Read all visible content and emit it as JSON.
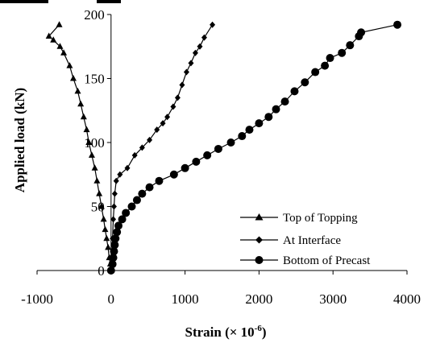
{
  "chart_data": {
    "type": "line",
    "xlabel": "Strain (× 10",
    "xlabel_sup": "-6",
    "xlabel_end": ")",
    "ylabel": "Applied load (kN)",
    "xlim": [
      -1000,
      4000
    ],
    "ylim": [
      0,
      200
    ],
    "x_ticks": [
      -1000,
      0,
      1000,
      2000,
      3000,
      4000
    ],
    "y_ticks": [
      0,
      50,
      100,
      150,
      200
    ],
    "x_tick_labels": [
      "-1000",
      "0",
      "1000",
      "2000",
      "3000",
      "4000"
    ],
    "y_tick_labels": [
      "0",
      "50",
      "100",
      "150",
      "200"
    ],
    "grid": false,
    "legend_position": "bottom-right",
    "series": [
      {
        "name": "Top of Topping",
        "marker": "triangle",
        "points": [
          [
            0,
            0
          ],
          [
            -10,
            5
          ],
          [
            -25,
            10
          ],
          [
            -40,
            18
          ],
          [
            -60,
            25
          ],
          [
            -80,
            32
          ],
          [
            -100,
            40
          ],
          [
            -130,
            50
          ],
          [
            -160,
            60
          ],
          [
            -190,
            70
          ],
          [
            -220,
            80
          ],
          [
            -260,
            90
          ],
          [
            -300,
            100
          ],
          [
            -330,
            110
          ],
          [
            -370,
            120
          ],
          [
            -410,
            130
          ],
          [
            -450,
            140
          ],
          [
            -510,
            150
          ],
          [
            -560,
            160
          ],
          [
            -640,
            170
          ],
          [
            -690,
            175
          ],
          [
            -780,
            180
          ],
          [
            -840,
            183
          ],
          [
            -700,
            192
          ]
        ]
      },
      {
        "name": "At Interface",
        "marker": "diamond",
        "points": [
          [
            0,
            0
          ],
          [
            10,
            10
          ],
          [
            20,
            25
          ],
          [
            30,
            40
          ],
          [
            40,
            50
          ],
          [
            50,
            60
          ],
          [
            70,
            70
          ],
          [
            120,
            75
          ],
          [
            220,
            80
          ],
          [
            320,
            90
          ],
          [
            420,
            96
          ],
          [
            520,
            102
          ],
          [
            620,
            110
          ],
          [
            700,
            115
          ],
          [
            760,
            120
          ],
          [
            840,
            128
          ],
          [
            900,
            135
          ],
          [
            960,
            145
          ],
          [
            1020,
            155
          ],
          [
            1080,
            162
          ],
          [
            1140,
            170
          ],
          [
            1200,
            175
          ],
          [
            1260,
            182
          ],
          [
            1370,
            192
          ]
        ]
      },
      {
        "name": "Bottom of Precast",
        "marker": "circle",
        "points": [
          [
            0,
            0
          ],
          [
            20,
            5
          ],
          [
            30,
            10
          ],
          [
            40,
            15
          ],
          [
            50,
            20
          ],
          [
            60,
            25
          ],
          [
            80,
            30
          ],
          [
            100,
            35
          ],
          [
            150,
            40
          ],
          [
            200,
            45
          ],
          [
            280,
            50
          ],
          [
            350,
            55
          ],
          [
            420,
            60
          ],
          [
            520,
            65
          ],
          [
            650,
            70
          ],
          [
            850,
            75
          ],
          [
            1000,
            80
          ],
          [
            1150,
            85
          ],
          [
            1300,
            90
          ],
          [
            1450,
            95
          ],
          [
            1620,
            100
          ],
          [
            1770,
            105
          ],
          [
            1870,
            110
          ],
          [
            2000,
            115
          ],
          [
            2130,
            120
          ],
          [
            2230,
            126
          ],
          [
            2350,
            132
          ],
          [
            2480,
            140
          ],
          [
            2620,
            147
          ],
          [
            2760,
            155
          ],
          [
            2890,
            160
          ],
          [
            2960,
            166
          ],
          [
            3120,
            170
          ],
          [
            3230,
            176
          ],
          [
            3350,
            183
          ],
          [
            3380,
            186
          ],
          [
            3870,
            192
          ]
        ]
      }
    ]
  }
}
